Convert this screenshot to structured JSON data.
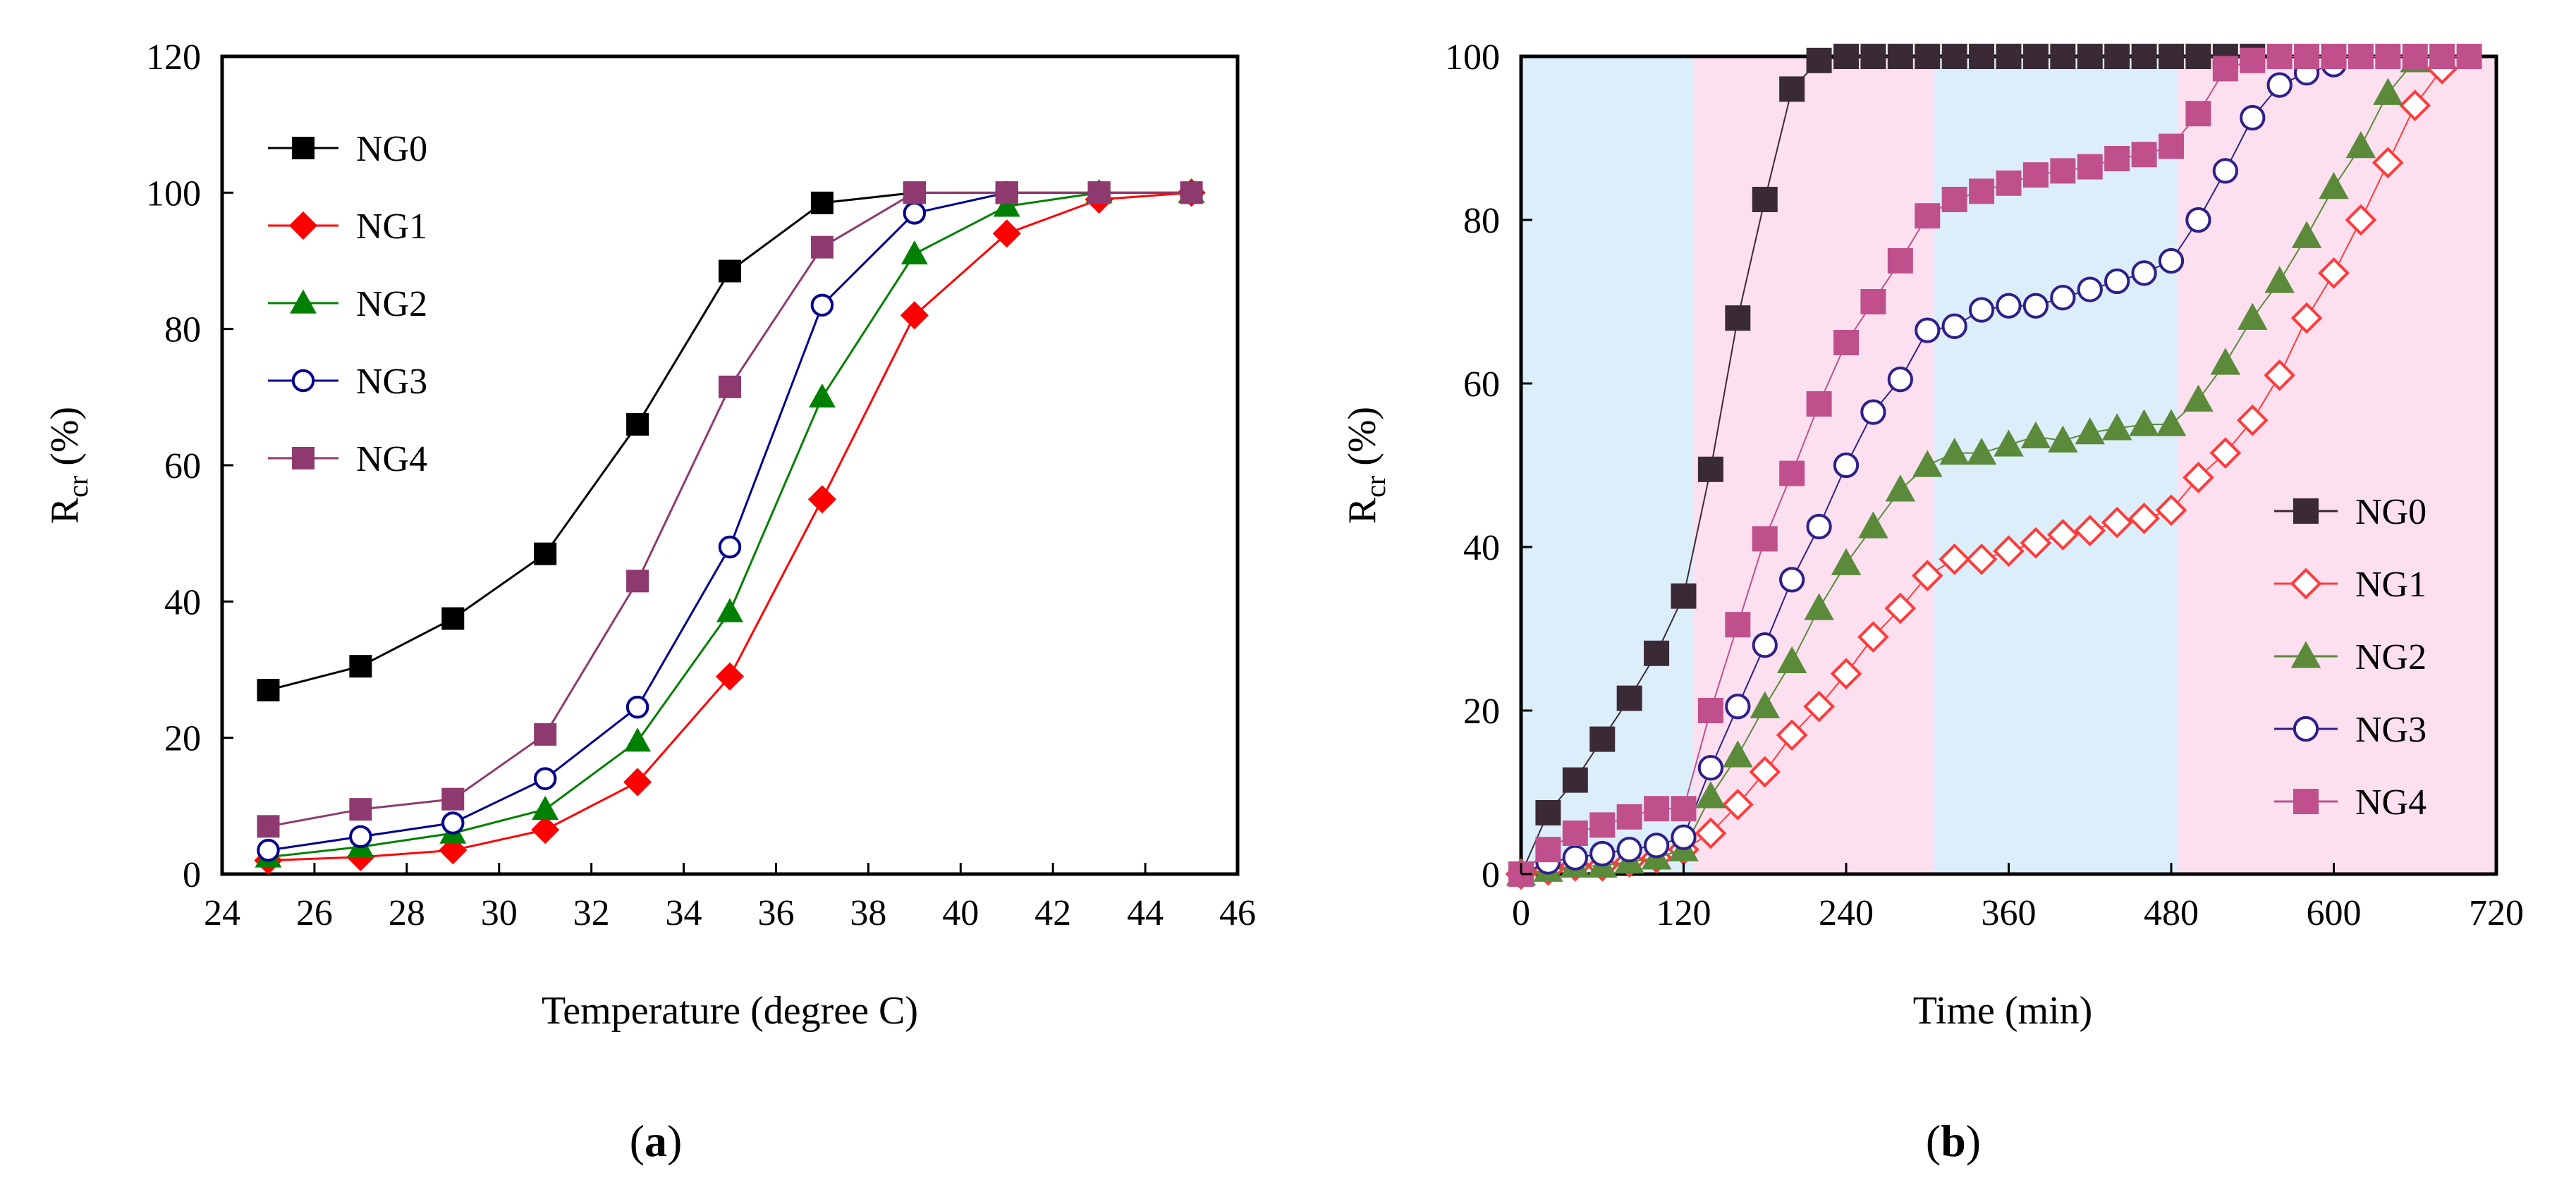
{
  "chart_data": [
    {
      "panel": "a",
      "type": "line",
      "title": "",
      "xlabel": "Temperature (degree C)",
      "ylabel": "R",
      "ylabel_sub": "cr",
      "ylabel_unit": " (%)",
      "xlim": [
        24,
        46
      ],
      "ylim": [
        0,
        120
      ],
      "xticks": [
        24,
        26,
        28,
        30,
        32,
        34,
        36,
        38,
        40,
        42,
        44,
        46
      ],
      "yticks": [
        0,
        20,
        40,
        60,
        80,
        100,
        120
      ],
      "grid": false,
      "legend_position": "top-left",
      "x": [
        25,
        27,
        29,
        31,
        33,
        35,
        37,
        39,
        41,
        43,
        45
      ],
      "series": [
        {
          "name": "NG0",
          "color": "#000000",
          "marker": "square-filled",
          "values": [
            27,
            30.5,
            37.5,
            47,
            66,
            88.5,
            98.5,
            100,
            100,
            100,
            100
          ]
        },
        {
          "name": "NG1",
          "color": "#ff0000",
          "marker": "diamond-filled",
          "values": [
            2,
            2.5,
            3.5,
            6.5,
            13.5,
            29,
            55,
            82,
            94,
            99,
            100
          ]
        },
        {
          "name": "NG2",
          "color": "#008000",
          "marker": "triangle-filled",
          "values": [
            2.5,
            4,
            6,
            9.5,
            19.5,
            38.5,
            70,
            91,
            98,
            100,
            100
          ]
        },
        {
          "name": "NG3",
          "color": "#00008b",
          "marker": "circle-open",
          "values": [
            3.5,
            5.5,
            7.5,
            14,
            24.5,
            48,
            83.5,
            97,
            100,
            100,
            100
          ]
        },
        {
          "name": "NG4",
          "color": "#8e3a6f",
          "marker": "square-filled",
          "values": [
            7,
            9.5,
            11,
            20.5,
            43,
            71.5,
            92,
            100,
            100,
            100,
            100
          ]
        }
      ]
    },
    {
      "panel": "b",
      "type": "line",
      "title": "",
      "xlabel": "Time (min)",
      "ylabel": "R",
      "ylabel_sub": "cr",
      "ylabel_unit": " (%)",
      "xlim": [
        0,
        720
      ],
      "ylim": [
        0,
        100
      ],
      "xticks": [
        0,
        120,
        240,
        360,
        480,
        600,
        720
      ],
      "yticks": [
        0,
        20,
        40,
        60,
        80,
        100
      ],
      "grid": false,
      "legend_position": "bottom-right",
      "background_bands": [
        {
          "from": 0,
          "to": 127,
          "color": "#ddeefb"
        },
        {
          "from": 127,
          "to": 305,
          "color": "#fde0ef"
        },
        {
          "from": 305,
          "to": 485,
          "color": "#ddeefb"
        },
        {
          "from": 485,
          "to": 720,
          "color": "#fde0ef"
        }
      ],
      "series": [
        {
          "name": "NG0",
          "color": "#3a2a36",
          "marker": "square-filled",
          "x": [
            0,
            20,
            40,
            60,
            80,
            100,
            120,
            140,
            160,
            180,
            200,
            220,
            240,
            260,
            280,
            300,
            320,
            340,
            360,
            380,
            400,
            420,
            440,
            460,
            480,
            500,
            520,
            540
          ],
          "values": [
            0,
            7.5,
            11.5,
            16.5,
            21.5,
            27,
            34,
            49.5,
            68,
            82.5,
            96,
            99.5,
            100,
            100,
            100,
            100,
            100,
            100,
            100,
            100,
            100,
            100,
            100,
            100,
            100,
            100,
            100,
            100
          ]
        },
        {
          "name": "NG1",
          "color": "#ff3b3b",
          "marker": "diamond-open",
          "x": [
            0,
            20,
            40,
            60,
            80,
            100,
            120,
            140,
            160,
            180,
            200,
            220,
            240,
            260,
            280,
            300,
            320,
            340,
            360,
            380,
            400,
            420,
            440,
            460,
            480,
            500,
            520,
            540,
            560,
            580,
            600,
            620,
            640,
            660,
            680
          ],
          "values": [
            0,
            0.5,
            1,
            1,
            1.5,
            2,
            3,
            5,
            8.5,
            12.5,
            17,
            20.5,
            24.5,
            29,
            32.5,
            36.5,
            38.5,
            38.5,
            39.5,
            40.5,
            41.5,
            42,
            43,
            43.5,
            44.5,
            48.5,
            51.5,
            55.5,
            61,
            68,
            73.5,
            80,
            87,
            94,
            98.5
          ]
        },
        {
          "name": "NG2",
          "color": "#5a8a3a",
          "marker": "triangle-filled",
          "x": [
            0,
            20,
            40,
            60,
            80,
            100,
            120,
            140,
            160,
            180,
            200,
            220,
            240,
            260,
            280,
            300,
            320,
            340,
            360,
            380,
            400,
            420,
            440,
            460,
            480,
            500,
            520,
            540,
            560,
            580,
            600,
            620,
            640,
            660
          ],
          "values": [
            0,
            0.5,
            1,
            1,
            1.5,
            2,
            3,
            9.5,
            14.5,
            20.5,
            26,
            32.5,
            38,
            42.5,
            47,
            50,
            51.5,
            51.5,
            52.5,
            53.5,
            53,
            54,
            54.5,
            55,
            55,
            58,
            62.5,
            68,
            72.5,
            78,
            84,
            89,
            95.5,
            99.5
          ]
        },
        {
          "name": "NG3",
          "color": "#2e1f8a",
          "marker": "circle-open",
          "x": [
            0,
            20,
            40,
            60,
            80,
            100,
            120,
            140,
            160,
            180,
            200,
            220,
            240,
            260,
            280,
            300,
            320,
            340,
            360,
            380,
            400,
            420,
            440,
            460,
            480,
            500,
            520,
            540,
            560,
            580,
            600
          ],
          "values": [
            0,
            1.5,
            2,
            2.5,
            3,
            3.5,
            4.5,
            13,
            20.5,
            28,
            36,
            42.5,
            50,
            56.5,
            60.5,
            66.5,
            67,
            69,
            69.5,
            69.5,
            70.5,
            71.5,
            72.5,
            73.5,
            75,
            80,
            86,
            92.5,
            96.5,
            98,
            99
          ]
        },
        {
          "name": "NG4",
          "color": "#c0508c",
          "marker": "square-filled",
          "x": [
            0,
            20,
            40,
            60,
            80,
            100,
            120,
            140,
            160,
            180,
            200,
            220,
            240,
            260,
            280,
            300,
            320,
            340,
            360,
            380,
            400,
            420,
            440,
            460,
            480,
            500,
            520,
            540,
            560,
            580,
            600,
            620,
            640,
            660,
            680,
            700
          ],
          "values": [
            0,
            3,
            5,
            6,
            7,
            8,
            8,
            20,
            30.5,
            41,
            49,
            57.5,
            65,
            70,
            75,
            80.5,
            82.5,
            83.5,
            84.5,
            85.5,
            86,
            86.5,
            87.5,
            88,
            89,
            93,
            98.5,
            99.5,
            100,
            100,
            100,
            100,
            100,
            100,
            100,
            100
          ]
        }
      ]
    }
  ],
  "panel_labels": {
    "a": "a",
    "b": "b"
  }
}
